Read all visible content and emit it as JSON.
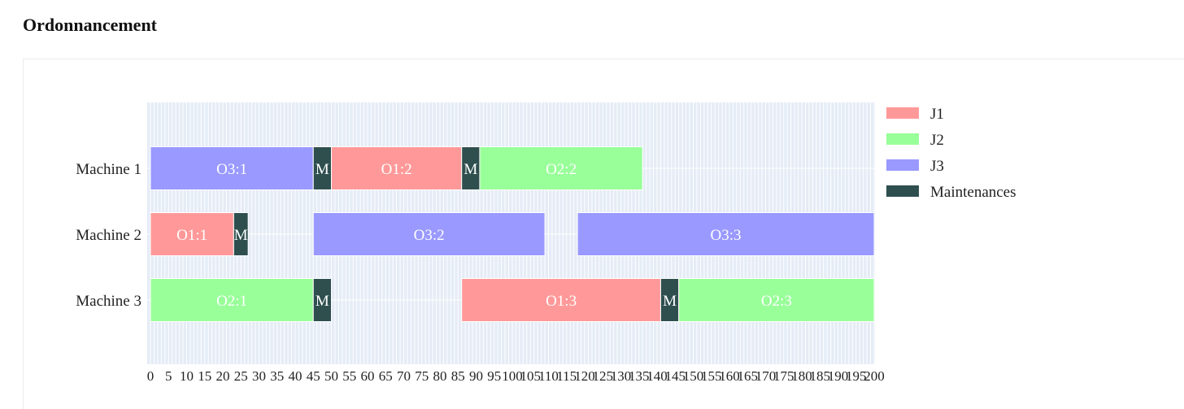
{
  "header": {
    "title": "Ordonnancement"
  },
  "chart_data": {
    "type": "gantt",
    "title": "",
    "xlabel": "",
    "ylabel": "",
    "xlim": [
      0,
      200
    ],
    "grid": true,
    "legend_position": "top-right",
    "machines": [
      "Machine 1",
      "Machine 2",
      "Machine 3"
    ],
    "legend": [
      {
        "name": "J1",
        "color": "#ff9999"
      },
      {
        "name": "J2",
        "color": "#99ff99"
      },
      {
        "name": "J3",
        "color": "#9999ff"
      },
      {
        "name": "Maintenances",
        "color": "#2f4f4f"
      }
    ],
    "tasks": [
      {
        "machine": "Machine 1",
        "label": "O3:1",
        "start": 0,
        "end": 45,
        "group": "J3"
      },
      {
        "machine": "Machine 1",
        "label": "M",
        "start": 45,
        "end": 50,
        "group": "Maintenances"
      },
      {
        "machine": "Machine 1",
        "label": "O1:2",
        "start": 50,
        "end": 86,
        "group": "J1"
      },
      {
        "machine": "Machine 1",
        "label": "M",
        "start": 86,
        "end": 91,
        "group": "Maintenances"
      },
      {
        "machine": "Machine 1",
        "label": "O2:2",
        "start": 91,
        "end": 136,
        "group": "J2"
      },
      {
        "machine": "Machine 2",
        "label": "O1:1",
        "start": 0,
        "end": 23,
        "group": "J1"
      },
      {
        "machine": "Machine 2",
        "label": "M",
        "start": 23,
        "end": 27,
        "group": "Maintenances"
      },
      {
        "machine": "Machine 2",
        "label": "O3:2",
        "start": 45,
        "end": 109,
        "group": "J3"
      },
      {
        "machine": "Machine 2",
        "label": "O3:3",
        "start": 118,
        "end": 200,
        "group": "J3"
      },
      {
        "machine": "Machine 3",
        "label": "O2:1",
        "start": 0,
        "end": 45,
        "group": "J2"
      },
      {
        "machine": "Machine 3",
        "label": "M",
        "start": 45,
        "end": 50,
        "group": "Maintenances"
      },
      {
        "machine": "Machine 3",
        "label": "O1:3",
        "start": 86,
        "end": 141,
        "group": "J1"
      },
      {
        "machine": "Machine 3",
        "label": "M",
        "start": 141,
        "end": 146,
        "group": "Maintenances"
      },
      {
        "machine": "Machine 3",
        "label": "O2:3",
        "start": 146,
        "end": 200,
        "group": "J2"
      }
    ]
  }
}
